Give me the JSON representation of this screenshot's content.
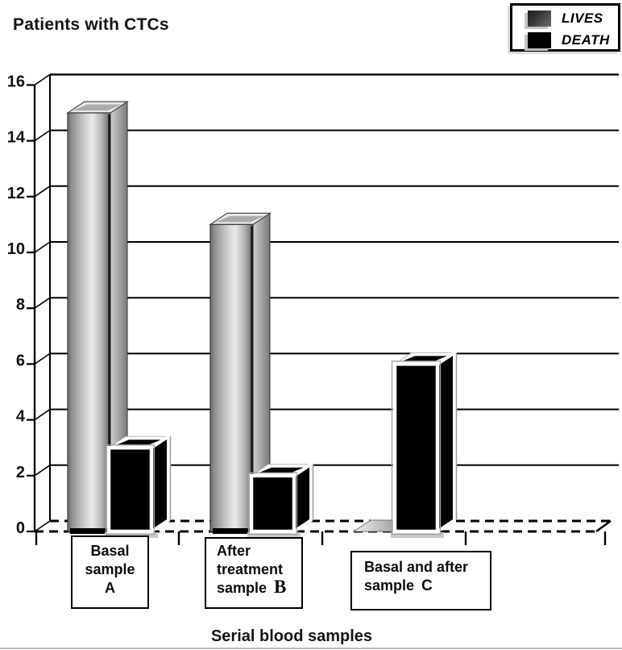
{
  "figure": {
    "title": "Patients with CTCs",
    "xlabel": "Serial blood samples"
  },
  "chart_data": {
    "type": "bar",
    "projection": "3d",
    "title": "Patients with CTCs",
    "xlabel": "Serial blood samples",
    "ylabel": "Patients with CTCs",
    "ylim": [
      0,
      16
    ],
    "yticks": [
      0,
      2,
      4,
      6,
      8,
      10,
      12,
      14,
      16
    ],
    "grid": true,
    "zero_line_style": "dashed",
    "legend_position": "top-right",
    "categories": [
      "Basal sample A",
      "After treatment sample B",
      "Basal and after sample C"
    ],
    "category_boxes": [
      {
        "lines": [
          "Basal",
          "sample",
          "A"
        ],
        "align": "center"
      },
      {
        "lines": [
          "After",
          "treatment",
          "sample  B"
        ],
        "align": "left"
      },
      {
        "lines": [
          "Basal and after",
          "sample  C"
        ],
        "align": "left"
      }
    ],
    "series": [
      {
        "name": "LIVES",
        "appearance": "silver-gradient-3d",
        "values": [
          15,
          11,
          0
        ]
      },
      {
        "name": "DEATH",
        "appearance": "black-3d-white-frame",
        "values": [
          3,
          2,
          6
        ]
      }
    ],
    "colors": {
      "lives_swatch": "#3a3a3a",
      "death_swatch": "#000000",
      "gridline": "#000000"
    }
  }
}
